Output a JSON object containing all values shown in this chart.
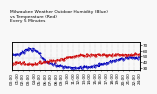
{
  "title": "Milwaukee Weather Outdoor Humidity (Blue)\nvs Temperature (Red)\nEvery 5 Minutes",
  "background_color": "#f8f8f8",
  "plot_bg_color": "#f8f8f8",
  "grid_color": "#aaaaaa",
  "blue_color": "#0000bb",
  "red_color": "#cc0000",
  "n_points": 288,
  "ylim_humidity": [
    10,
    100
  ],
  "ylim_temp": [
    25,
    75
  ],
  "title_fontsize": 3.2,
  "tick_fontsize": 3.0,
  "linewidth": 0.7
}
